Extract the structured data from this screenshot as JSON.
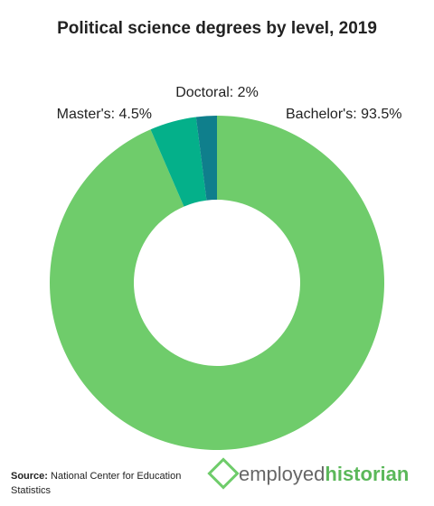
{
  "chart_data": {
    "type": "donut",
    "title": "Political science degrees by level, 2019",
    "categories": [
      "Bachelor's:",
      "Master's:",
      "Doctoral:"
    ],
    "values": [
      93.5,
      4.5,
      2
    ],
    "value_labels": [
      "93.5%",
      "4.5%",
      "2%"
    ],
    "colors": [
      "#6fcc6b",
      "#04b08a",
      "#0f7f8c"
    ]
  },
  "footer": {
    "source_label": "Source:",
    "source_text": "National Center for Education",
    "source_text_2": "Statistics",
    "brand_part_1": "employed",
    "brand_part_2": "historian"
  }
}
